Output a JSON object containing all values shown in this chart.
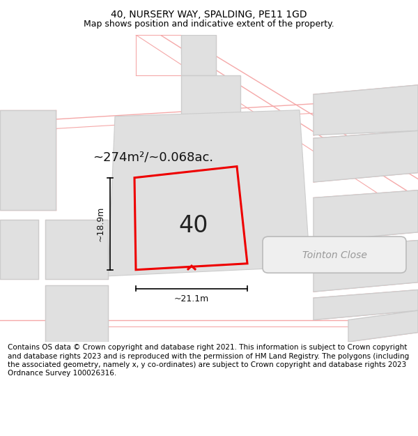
{
  "title": "40, NURSERY WAY, SPALDING, PE11 1GD",
  "subtitle": "Map shows position and indicative extent of the property.",
  "footer": "Contains OS data © Crown copyright and database right 2021. This information is subject to Crown copyright and database rights 2023 and is reproduced with the permission of HM Land Registry. The polygons (including the associated geometry, namely x, y co-ordinates) are subject to Crown copyright and database rights 2023 Ordnance Survey 100026316.",
  "bg_color": "#ffffff",
  "pink": "#f5a8a8",
  "gray_fill": "#e0e0e0",
  "gray_edge": "#cccccc",
  "red": "#ee0000",
  "area_text": "~274m²/~0.068ac.",
  "number_text": "40",
  "dim_width": "~21.1m",
  "dim_height": "~18.9m",
  "street_label": "Tointon Close",
  "title_fontsize": 10,
  "subtitle_fontsize": 9,
  "footer_fontsize": 7.5
}
